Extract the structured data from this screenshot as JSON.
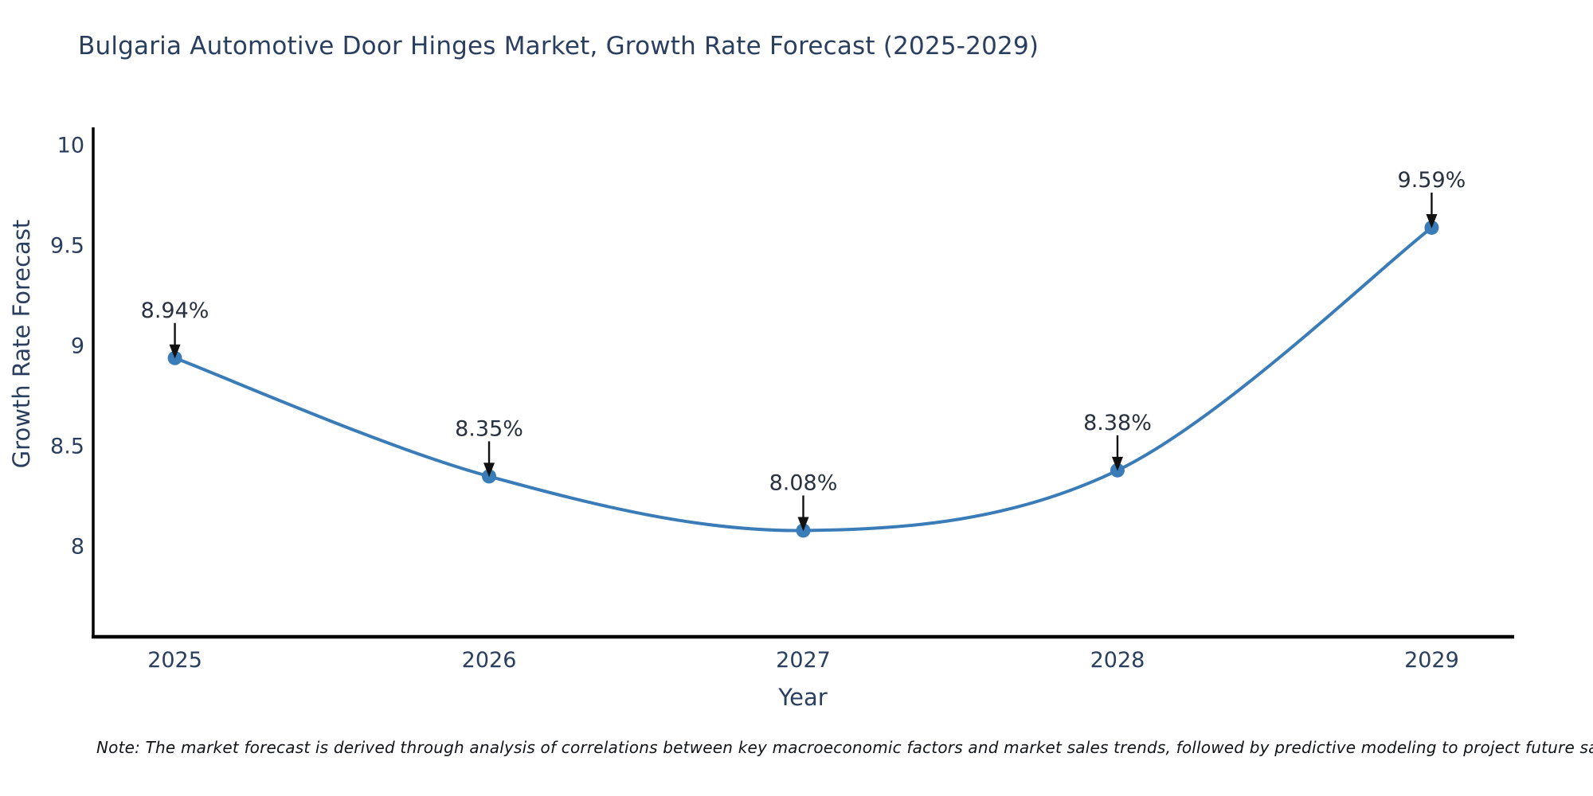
{
  "chart_data": {
    "type": "line",
    "title": "Bulgaria Automotive Door Hinges Market, Growth Rate Forecast (2025-2029)",
    "xlabel": "Year",
    "ylabel": "Growth Rate Forecast",
    "categories": [
      "2025",
      "2026",
      "2027",
      "2028",
      "2029"
    ],
    "values": [
      8.94,
      8.35,
      8.08,
      8.38,
      9.59
    ],
    "point_labels": [
      "8.94%",
      "8.35%",
      "8.08%",
      "8.38%",
      "9.59%"
    ],
    "ytick_labels": [
      "10",
      "9.5",
      "9",
      "8.5",
      "8"
    ],
    "ylim": [
      7.55,
      10.09
    ],
    "xlim": [
      2024.74,
      2029.26
    ],
    "grid": false,
    "legend": "none",
    "line_shape": "spline",
    "marker": "circle",
    "annotation_arrows": true,
    "note": "Note: The market forecast is derived through analysis of correlations between key macroeconomic factors and market sales trends, followed by predictive modeling to project future sales.",
    "colors": {
      "line": "#3a7cb8",
      "marker": "#3a7cb8",
      "text": "#2a3f5f",
      "annotation_text": "#27313f",
      "arrow": "#111111",
      "axis": "#000000",
      "background": "#ffffff"
    }
  }
}
